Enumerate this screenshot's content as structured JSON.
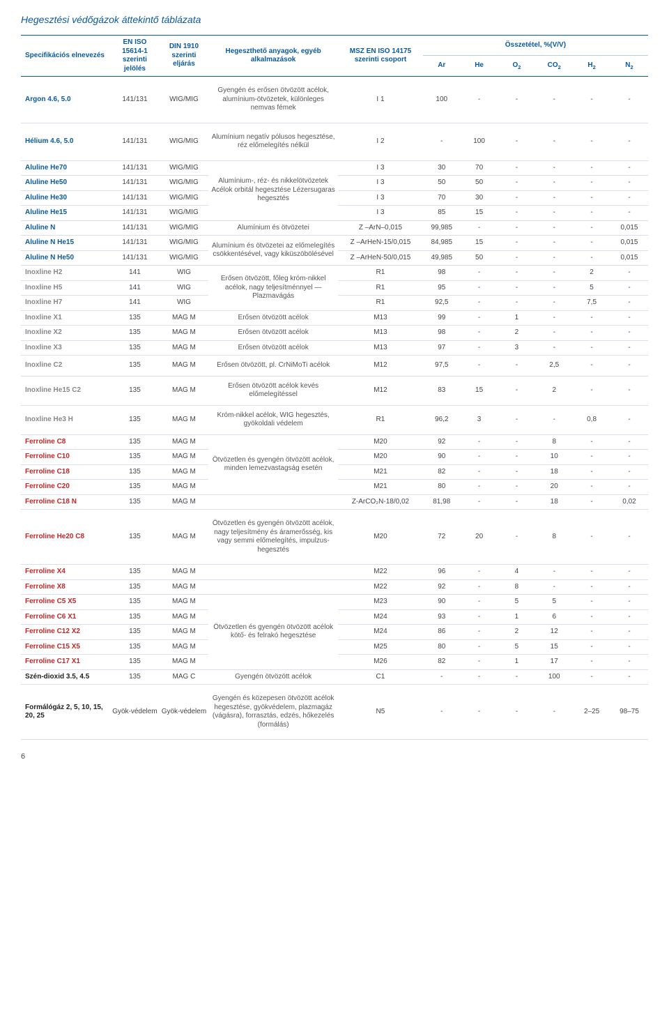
{
  "title": "Hegesztési védőgázok áttekintő táblázata",
  "page_number": "6",
  "colwidths": [
    "100",
    "55",
    "55",
    "145",
    "95",
    "42",
    "42",
    "42",
    "42",
    "42",
    "42"
  ],
  "header": {
    "spec": "Specifikációs elnevezés",
    "eniso": "EN ISO 15614-1 szerinti jelölés",
    "din": "DIN 1910 szerinti eljárás",
    "materials": "Hegeszthető anyagok, egyéb alkalmazások",
    "msz": "MSZ EN ISO 14175 szerinti csoport",
    "comp": "Összetétel, %(V/V)",
    "Ar": "Ar",
    "He": "He",
    "O2": "O",
    "CO2": "CO",
    "H2": "H",
    "N2": "N"
  },
  "rows": [
    {
      "k": "sep big",
      "spec": "Argon 4.6, 5.0",
      "c2": "141/131",
      "c3": "WIG/MIG",
      "desc": "Gyengén és erősen ötvözött acélok, alumínium-ötvözetek, különleges nemvas fémek",
      "grp": "I 1",
      "ar": "100",
      "he": "-",
      "o2": "-",
      "co2": "-",
      "h2": "-",
      "n2": "-",
      "cls": "blue"
    },
    {
      "k": "sep big",
      "spec": "Hélium 4.6, 5.0",
      "c2": "141/131",
      "c3": "WIG/MIG",
      "desc": "Alumínium negatív pólusos hegesztése, réz előmelegítés nélkül",
      "grp": "I 2",
      "ar": "-",
      "he": "100",
      "o2": "-",
      "co2": "-",
      "h2": "-",
      "n2": "-",
      "cls": "blue"
    },
    {
      "k": "sep",
      "spec": "Aluline He70",
      "c2": "141/131",
      "c3": "WIG/MIG",
      "desc": "",
      "grp": "I 3",
      "ar": "30",
      "he": "70",
      "o2": "-",
      "co2": "-",
      "h2": "-",
      "n2": "-",
      "cls": "blue",
      "descrowspan": 4,
      "descmerge": "Alumínium-, réz- és nikkelötvözetek Acélok orbitál hegesztése Lézersugaras hegesztés"
    },
    {
      "spec": "Aluline He50",
      "c2": "141/131",
      "c3": "WIG/MIG",
      "grp": "I 3",
      "ar": "50",
      "he": "50",
      "o2": "-",
      "co2": "-",
      "h2": "-",
      "n2": "-",
      "cls": "blue",
      "nodesc": true
    },
    {
      "spec": "Aluline He30",
      "c2": "141/131",
      "c3": "WIG/MIG",
      "grp": "I 3",
      "ar": "70",
      "he": "30",
      "o2": "-",
      "co2": "-",
      "h2": "-",
      "n2": "-",
      "cls": "blue",
      "nodesc": true
    },
    {
      "spec": "Aluline He15",
      "c2": "141/131",
      "c3": "WIG/MIG",
      "grp": "I 3",
      "ar": "85",
      "he": "15",
      "o2": "-",
      "co2": "-",
      "h2": "-",
      "n2": "-",
      "cls": "blue",
      "nodesc": true
    },
    {
      "k": "sep",
      "spec": "Aluline N",
      "c2": "141/131",
      "c3": "WIG/MIG",
      "desc": "Alumínium és ötvözetei",
      "grp": "Z –ArN–0,015",
      "ar": "99,985",
      "he": "-",
      "o2": "-",
      "co2": "-",
      "h2": "-",
      "n2": "0,015",
      "cls": "blue"
    },
    {
      "k": "sep",
      "spec": "Aluline N He15",
      "c2": "141/131",
      "c3": "WIG/MIG",
      "desc": "",
      "grp": "Z –ArHeN-15/0,015",
      "ar": "84,985",
      "he": "15",
      "o2": "-",
      "co2": "-",
      "h2": "-",
      "n2": "0,015",
      "cls": "blue",
      "descrowspan": 2,
      "descmerge": "Alumínium és ötvözetei az előmelegítés csökkentésével, vagy kiküszöbölésével"
    },
    {
      "spec": "Aluline N He50",
      "c2": "141/131",
      "c3": "WIG/MIG",
      "grp": "Z –ArHeN-50/0,015",
      "ar": "49,985",
      "he": "50",
      "o2": "-",
      "co2": "-",
      "h2": "-",
      "n2": "0,015",
      "cls": "blue",
      "nodesc": true
    },
    {
      "k": "sep",
      "spec": "Inoxline H2",
      "c2": "141",
      "c3": "WIG",
      "desc": "",
      "grp": "R1",
      "ar": "98",
      "he": "-",
      "o2": "-",
      "co2": "-",
      "h2": "2",
      "n2": "-",
      "cls": "gray",
      "descrowspan": 3,
      "descmerge": "Erősen ötvözött, főleg króm-nikkel acélok, nagy teljesítménnyel — Plazmavágás"
    },
    {
      "spec": "Inoxline H5",
      "c2": "141",
      "c3": "WIG",
      "grp": "R1",
      "ar": "95",
      "he": "-",
      "o2": "-",
      "co2": "-",
      "h2": "5",
      "n2": "-",
      "cls": "gray",
      "nodesc": true
    },
    {
      "spec": "Inoxline H7",
      "c2": "141",
      "c3": "WIG",
      "grp": "R1",
      "ar": "92,5",
      "he": "-",
      "o2": "-",
      "co2": "-",
      "h2": "7,5",
      "n2": "-",
      "cls": "gray",
      "nodesc": true
    },
    {
      "k": "sep",
      "spec": "Inoxline X1",
      "c2": "135",
      "c3": "MAG M",
      "desc": "Erősen ötvözött acélok",
      "grp": "M13",
      "ar": "99",
      "he": "-",
      "o2": "1",
      "co2": "-",
      "h2": "-",
      "n2": "-",
      "cls": "gray"
    },
    {
      "k": "sep",
      "spec": "Inoxline X2",
      "c2": "135",
      "c3": "MAG M",
      "desc": "Erősen ötvözött acélok",
      "grp": "M13",
      "ar": "98",
      "he": "-",
      "o2": "2",
      "co2": "-",
      "h2": "-",
      "n2": "-",
      "cls": "gray"
    },
    {
      "k": "sep",
      "spec": "Inoxline X3",
      "c2": "135",
      "c3": "MAG M",
      "desc": "Erősen ötvözött acélok",
      "grp": "M13",
      "ar": "97",
      "he": "-",
      "o2": "3",
      "co2": "-",
      "h2": "-",
      "n2": "-",
      "cls": "gray"
    },
    {
      "k": "sep med",
      "spec": "Inoxline C2",
      "c2": "135",
      "c3": "MAG M",
      "desc": "Erősen ötvözött, pl. CrNiMoTi acélok",
      "grp": "M12",
      "ar": "97,5",
      "he": "-",
      "o2": "-",
      "co2": "2,5",
      "h2": "-",
      "n2": "-",
      "cls": "gray"
    },
    {
      "k": "sep med",
      "spec": "Inoxline He15 C2",
      "c2": "135",
      "c3": "MAG M",
      "desc": "Erősen ötvözött acélok kevés előmelegítéssel",
      "grp": "M12",
      "ar": "83",
      "he": "15",
      "o2": "-",
      "co2": "2",
      "h2": "-",
      "n2": "-",
      "cls": "gray"
    },
    {
      "k": "sep med",
      "spec": "Inoxline He3 H",
      "c2": "135",
      "c3": "MAG M",
      "desc": "Króm-nikkel acélok, WIG hegesztés, gyökoldali védelem",
      "grp": "R1",
      "ar": "96,2",
      "he": "3",
      "o2": "-",
      "co2": "-",
      "h2": "0,8",
      "n2": "-",
      "cls": "gray"
    },
    {
      "k": "sep",
      "spec": "Ferroline C8",
      "c2": "135",
      "c3": "MAG M",
      "desc": "",
      "grp": "M20",
      "ar": "92",
      "he": "-",
      "o2": "-",
      "co2": "8",
      "h2": "-",
      "n2": "-",
      "cls": "red",
      "descrowspan": 4,
      "descmerge": "Ötvözetlen és gyengén ötvözött acélok, minden lemezvastagság esetén"
    },
    {
      "spec": "Ferroline C10",
      "c2": "135",
      "c3": "MAG M",
      "grp": "M20",
      "ar": "90",
      "he": "-",
      "o2": "-",
      "co2": "10",
      "h2": "-",
      "n2": "-",
      "cls": "red",
      "nodesc": true
    },
    {
      "spec": "Ferroline C18",
      "c2": "135",
      "c3": "MAG M",
      "grp": "M21",
      "ar": "82",
      "he": "-",
      "o2": "-",
      "co2": "18",
      "h2": "-",
      "n2": "-",
      "cls": "red",
      "nodesc": true
    },
    {
      "spec": "Ferroline C20",
      "c2": "135",
      "c3": "MAG M",
      "grp": "M21",
      "ar": "80",
      "he": "-",
      "o2": "-",
      "co2": "20",
      "h2": "-",
      "n2": "-",
      "cls": "red",
      "nodesc": true
    },
    {
      "k": "sep",
      "spec": "Ferroline C18 N",
      "c2": "135",
      "c3": "MAG M",
      "desc": "",
      "grp": "Z-ArCO₂N-18/0,02",
      "ar": "81,98",
      "he": "-",
      "o2": "-",
      "co2": "18",
      "h2": "-",
      "n2": "0,02",
      "cls": "red"
    },
    {
      "k": "sep big",
      "spec": "Ferroline He20 C8",
      "c2": "135",
      "c3": "MAG M",
      "desc": "Ötvözetlen és gyengén ötvözött acélok, nagy teljesítmény és áramerősség, kis vagy semmi előmelegítés, impulzus-hegesztés",
      "grp": "M20",
      "ar": "72",
      "he": "20",
      "o2": "-",
      "co2": "8",
      "h2": "-",
      "n2": "-",
      "cls": "red"
    },
    {
      "k": "sep",
      "spec": "Ferroline X4",
      "c2": "135",
      "c3": "MAG M",
      "desc": "",
      "grp": "M22",
      "ar": "96",
      "he": "-",
      "o2": "4",
      "co2": "-",
      "h2": "-",
      "n2": "-",
      "cls": "red"
    },
    {
      "k": "sep",
      "spec": "Ferroline X8",
      "c2": "135",
      "c3": "MAG M",
      "desc": "",
      "grp": "M22",
      "ar": "92",
      "he": "-",
      "o2": "8",
      "co2": "-",
      "h2": "-",
      "n2": "-",
      "cls": "red"
    },
    {
      "k": "sep",
      "spec": "Ferroline C5 X5",
      "c2": "135",
      "c3": "MAG M",
      "desc": "",
      "grp": "M23",
      "ar": "90",
      "he": "-",
      "o2": "5",
      "co2": "5",
      "h2": "-",
      "n2": "-",
      "cls": "red",
      "descrowspan": 5,
      "descmerge": "Ötvözetlen és gyengén ötvözött acélok kötő- és felrakó hegesztése"
    },
    {
      "spec": "Ferroline C6 X1",
      "c2": "135",
      "c3": "MAG M",
      "grp": "M24",
      "ar": "93",
      "he": "-",
      "o2": "1",
      "co2": "6",
      "h2": "-",
      "n2": "-",
      "cls": "red",
      "nodesc": true
    },
    {
      "spec": "Ferroline C12 X2",
      "c2": "135",
      "c3": "MAG M",
      "grp": "M24",
      "ar": "86",
      "he": "-",
      "o2": "2",
      "co2": "12",
      "h2": "-",
      "n2": "-",
      "cls": "red",
      "nodesc": true
    },
    {
      "spec": "Ferroline C15 X5",
      "c2": "135",
      "c3": "MAG M",
      "grp": "M25",
      "ar": "80",
      "he": "-",
      "o2": "5",
      "co2": "15",
      "h2": "-",
      "n2": "-",
      "cls": "red",
      "nodesc": true
    },
    {
      "spec": "Ferroline C17 X1",
      "c2": "135",
      "c3": "MAG M",
      "grp": "M26",
      "ar": "82",
      "he": "-",
      "o2": "1",
      "co2": "17",
      "h2": "-",
      "n2": "-",
      "cls": "red",
      "nodesc": true
    },
    {
      "k": "sep",
      "spec": "Szén-dioxid 3.5, 4.5",
      "c2": "135",
      "c3": "MAG C",
      "desc": "Gyengén ötvözött acélok",
      "grp": "C1",
      "ar": "-",
      "he": "-",
      "o2": "-",
      "co2": "100",
      "h2": "-",
      "n2": "-",
      "cls": "black"
    },
    {
      "k": "sep big",
      "spec": "Formálógáz 2, 5, 10, 15, 20, 25",
      "c2": "Gyök-védelem",
      "c3": "Gyök-védelem",
      "desc": "Gyengén és közepesen ötvözött acélok hegesztése, gyökvédelem, plazmagáz (vágásra), forrasztás, edzés, hőkezelés (formálás)",
      "grp": "N5",
      "ar": "-",
      "he": "-",
      "o2": "-",
      "co2": "-",
      "h2": "2–25",
      "n2": "98–75",
      "cls": "black"
    }
  ]
}
